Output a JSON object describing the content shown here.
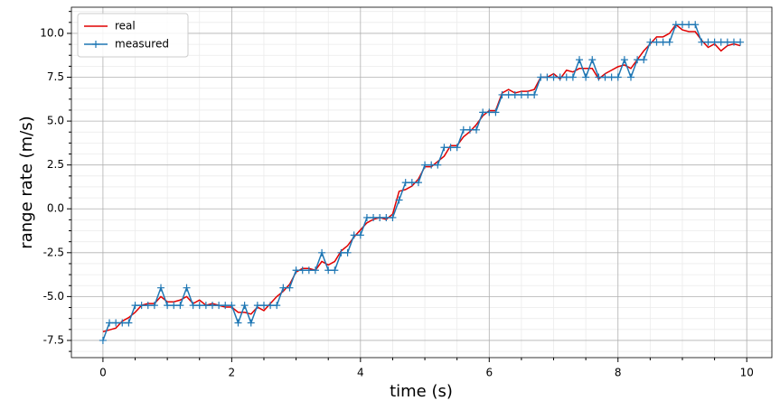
{
  "chart_data": {
    "type": "line",
    "x_label": "time (s)",
    "y_label": "range rate (m/s)",
    "xlim": [
      -0.49,
      10.39
    ],
    "ylim": [
      -8.48,
      11.49
    ],
    "xticks": [
      0,
      2,
      4,
      6,
      8,
      10
    ],
    "yticks": [
      -7.5,
      {
        "value": -5,
        "label": "-5.0"
      },
      -2.5,
      {
        "value": 0,
        "label": "0.0"
      },
      2.5,
      {
        "value": 5,
        "label": "5.0"
      },
      7.5,
      {
        "value": 10,
        "label": "10.0"
      }
    ],
    "xminorticks": [
      0.5,
      1,
      1.5,
      2.5,
      3,
      3.5,
      4.5,
      5,
      5.5,
      6.5,
      7,
      7.5,
      8.5,
      9,
      9.5
    ],
    "yminorticks": [
      -8.125,
      -6.875,
      -6.25,
      -5.625,
      -4.375,
      -3.75,
      -3.125,
      -1.875,
      -1.25,
      -0.625,
      0.625,
      1.25,
      1.875,
      3.125,
      3.75,
      4.375,
      5.625,
      6.25,
      6.875,
      8.125,
      8.75,
      9.375,
      10.625,
      11.25
    ],
    "grid": true,
    "legend": "upper-left",
    "x": [
      0,
      0.1,
      0.2,
      0.3,
      0.4,
      0.5,
      0.6,
      0.7,
      0.8,
      0.9,
      1,
      1.1,
      1.2,
      1.3,
      1.4,
      1.5,
      1.6,
      1.7,
      1.8,
      1.9,
      2,
      2.1,
      2.2,
      2.3,
      2.4,
      2.5,
      2.6,
      2.7,
      2.8,
      2.9,
      3,
      3.1,
      3.2,
      3.3,
      3.4,
      3.5,
      3.6,
      3.7,
      3.8,
      3.9,
      4,
      4.1,
      4.2,
      4.3,
      4.4,
      4.5,
      4.6,
      4.7,
      4.8,
      4.9,
      5,
      5.1,
      5.2,
      5.3,
      5.4,
      5.5,
      5.6,
      5.7,
      5.8,
      5.9,
      6,
      6.1,
      6.2,
      6.3,
      6.4,
      6.5,
      6.6,
      6.7,
      6.8,
      6.9,
      7,
      7.1,
      7.2,
      7.3,
      7.4,
      7.5,
      7.6,
      7.7,
      7.8,
      7.9,
      8,
      8.1,
      8.2,
      8.3,
      8.4,
      8.5,
      8.6,
      8.7,
      8.8,
      8.9,
      9,
      9.1,
      9.2,
      9.3,
      9.4,
      9.5,
      9.6,
      9.7,
      9.8,
      9.9
    ],
    "series": [
      {
        "name": "real",
        "color": "#e00000",
        "marker": false,
        "values": [
          -7.0,
          -6.9,
          -6.8,
          -6.4,
          -6.2,
          -5.9,
          -5.5,
          -5.4,
          -5.4,
          -5.0,
          -5.3,
          -5.3,
          -5.2,
          -5.0,
          -5.4,
          -5.2,
          -5.5,
          -5.4,
          -5.5,
          -5.6,
          -5.6,
          -5.9,
          -5.9,
          -6.0,
          -5.6,
          -5.8,
          -5.4,
          -5.0,
          -4.7,
          -4.3,
          -3.6,
          -3.4,
          -3.4,
          -3.5,
          -3.0,
          -3.2,
          -3.0,
          -2.4,
          -2.1,
          -1.6,
          -1.2,
          -0.8,
          -0.6,
          -0.5,
          -0.6,
          -0.3,
          1.0,
          1.1,
          1.3,
          1.7,
          2.4,
          2.4,
          2.7,
          3.0,
          3.6,
          3.6,
          4.1,
          4.4,
          4.8,
          5.3,
          5.6,
          5.6,
          6.6,
          6.8,
          6.6,
          6.7,
          6.7,
          6.8,
          7.5,
          7.5,
          7.7,
          7.4,
          7.9,
          7.8,
          8.0,
          8.0,
          8.0,
          7.4,
          7.7,
          7.9,
          8.1,
          8.2,
          8.0,
          8.5,
          9.0,
          9.4,
          9.8,
          9.8,
          10.0,
          10.5,
          10.2,
          10.1,
          10.1,
          9.6,
          9.2,
          9.4,
          9.0,
          9.3,
          9.4,
          9.3
        ]
      },
      {
        "name": "measured",
        "color": "#1f77b4",
        "marker": true,
        "values": [
          -7.5,
          -6.5,
          -6.5,
          -6.5,
          -6.5,
          -5.5,
          -5.5,
          -5.5,
          -5.5,
          -4.5,
          -5.5,
          -5.5,
          -5.5,
          -4.5,
          -5.5,
          -5.5,
          -5.5,
          -5.5,
          -5.5,
          -5.5,
          -5.5,
          -6.5,
          -5.5,
          -6.5,
          -5.5,
          -5.5,
          -5.5,
          -5.5,
          -4.5,
          -4.5,
          -3.5,
          -3.5,
          -3.5,
          -3.5,
          -2.5,
          -3.5,
          -3.5,
          -2.5,
          -2.5,
          -1.5,
          -1.5,
          -0.5,
          -0.5,
          -0.5,
          -0.5,
          -0.5,
          0.5,
          1.5,
          1.5,
          1.5,
          2.5,
          2.5,
          2.5,
          3.5,
          3.5,
          3.5,
          4.5,
          4.5,
          4.5,
          5.5,
          5.5,
          5.5,
          6.5,
          6.5,
          6.5,
          6.5,
          6.5,
          6.5,
          7.5,
          7.5,
          7.5,
          7.5,
          7.5,
          7.5,
          8.5,
          7.5,
          8.5,
          7.5,
          7.5,
          7.5,
          7.5,
          8.5,
          7.5,
          8.5,
          8.5,
          9.5,
          9.5,
          9.5,
          9.5,
          10.5,
          10.5,
          10.5,
          10.5,
          9.5,
          9.5,
          9.5,
          9.5,
          9.5,
          9.5,
          9.5
        ]
      }
    ]
  }
}
